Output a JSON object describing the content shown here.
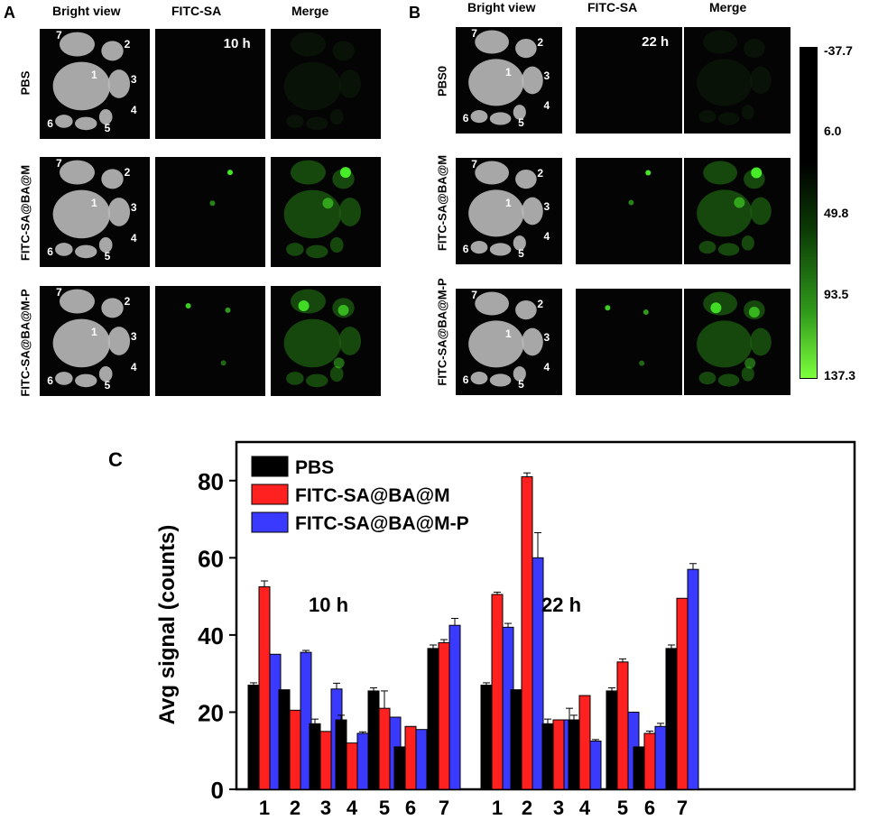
{
  "panels": {
    "A": {
      "letter": "A",
      "columns": [
        "Bright view",
        "FITC-SA",
        "Merge"
      ],
      "time": "10 h",
      "rows": [
        "PBS",
        "FITC-SA@BA@M",
        "FITC-SA@BA@M-P"
      ]
    },
    "B": {
      "letter": "B",
      "columns": [
        "Bright view",
        "FITC-SA",
        "Merge"
      ],
      "time": "22 h",
      "rows": [
        "PBS0",
        "FITC-SA@BA@M",
        "FITC-SA@BA@M-P"
      ]
    },
    "C": {
      "letter": "C"
    }
  },
  "organ_numbers": [
    "1",
    "2",
    "3",
    "4",
    "5",
    "6",
    "7"
  ],
  "colorbar": {
    "ticks": [
      "-37.7",
      "6.0",
      "49.8",
      "93.5",
      "137.3"
    ],
    "colors": {
      "top": "#000000",
      "bottom": "#7cff3c"
    }
  },
  "colors": {
    "PBS": "#000000",
    "FITC-SA@BA@M": "#ff2020",
    "FITC-SA@BA@M-P": "#3a3aff",
    "fluorescence": "#4cff2a"
  },
  "chart_data": {
    "type": "bar",
    "ylabel": "Avg signal (counts)",
    "xlabel": "",
    "ylim": [
      0,
      90
    ],
    "yticks": [
      0,
      20,
      40,
      60,
      80
    ],
    "legend_position": "top-left",
    "groups": [
      {
        "label": "10 h",
        "categories": [
          "1",
          "2",
          "3",
          "4",
          "5",
          "6",
          "7"
        ],
        "series": [
          {
            "name": "PBS",
            "values": [
              27,
              25.8,
              17,
              18,
              25.5,
              11,
              36.5
            ],
            "errors": [
              0.6,
              0,
              1.2,
              1.2,
              0.8,
              0,
              0.9
            ]
          },
          {
            "name": "FITC-SA@BA@M",
            "values": [
              52.5,
              20.5,
              15,
              12,
              21,
              16.3,
              38
            ],
            "errors": [
              1.5,
              0,
              0,
              0,
              4.5,
              0,
              0.8
            ]
          },
          {
            "name": "FITC-SA@BA@M-P",
            "values": [
              35,
              35.5,
              26,
              14.5,
              18.7,
              15.5,
              42.5
            ],
            "errors": [
              0,
              0.5,
              1.5,
              0.4,
              0,
              0,
              1.8
            ]
          }
        ]
      },
      {
        "label": "22 h",
        "categories": [
          "1",
          "2",
          "3",
          "4",
          "5",
          "6",
          "7"
        ],
        "series": [
          {
            "name": "PBS",
            "values": [
              27,
              25.8,
              17,
              18,
              25.5,
              11,
              36.5
            ],
            "errors": [
              0.6,
              0,
              1.2,
              1.2,
              0.8,
              0,
              0.9
            ]
          },
          {
            "name": "FITC-SA@BA@M",
            "values": [
              50.5,
              81,
              18,
              24.3,
              33,
              14.5,
              49.5
            ],
            "errors": [
              0.6,
              1,
              0,
              0,
              0.8,
              0.6,
              0
            ]
          },
          {
            "name": "FITC-SA@BA@M-P",
            "values": [
              42,
              60,
              18,
              12.5,
              20,
              16.3,
              57
            ],
            "errors": [
              1,
              6.5,
              3,
              0.4,
              0,
              0.8,
              1.5
            ]
          }
        ]
      }
    ]
  }
}
